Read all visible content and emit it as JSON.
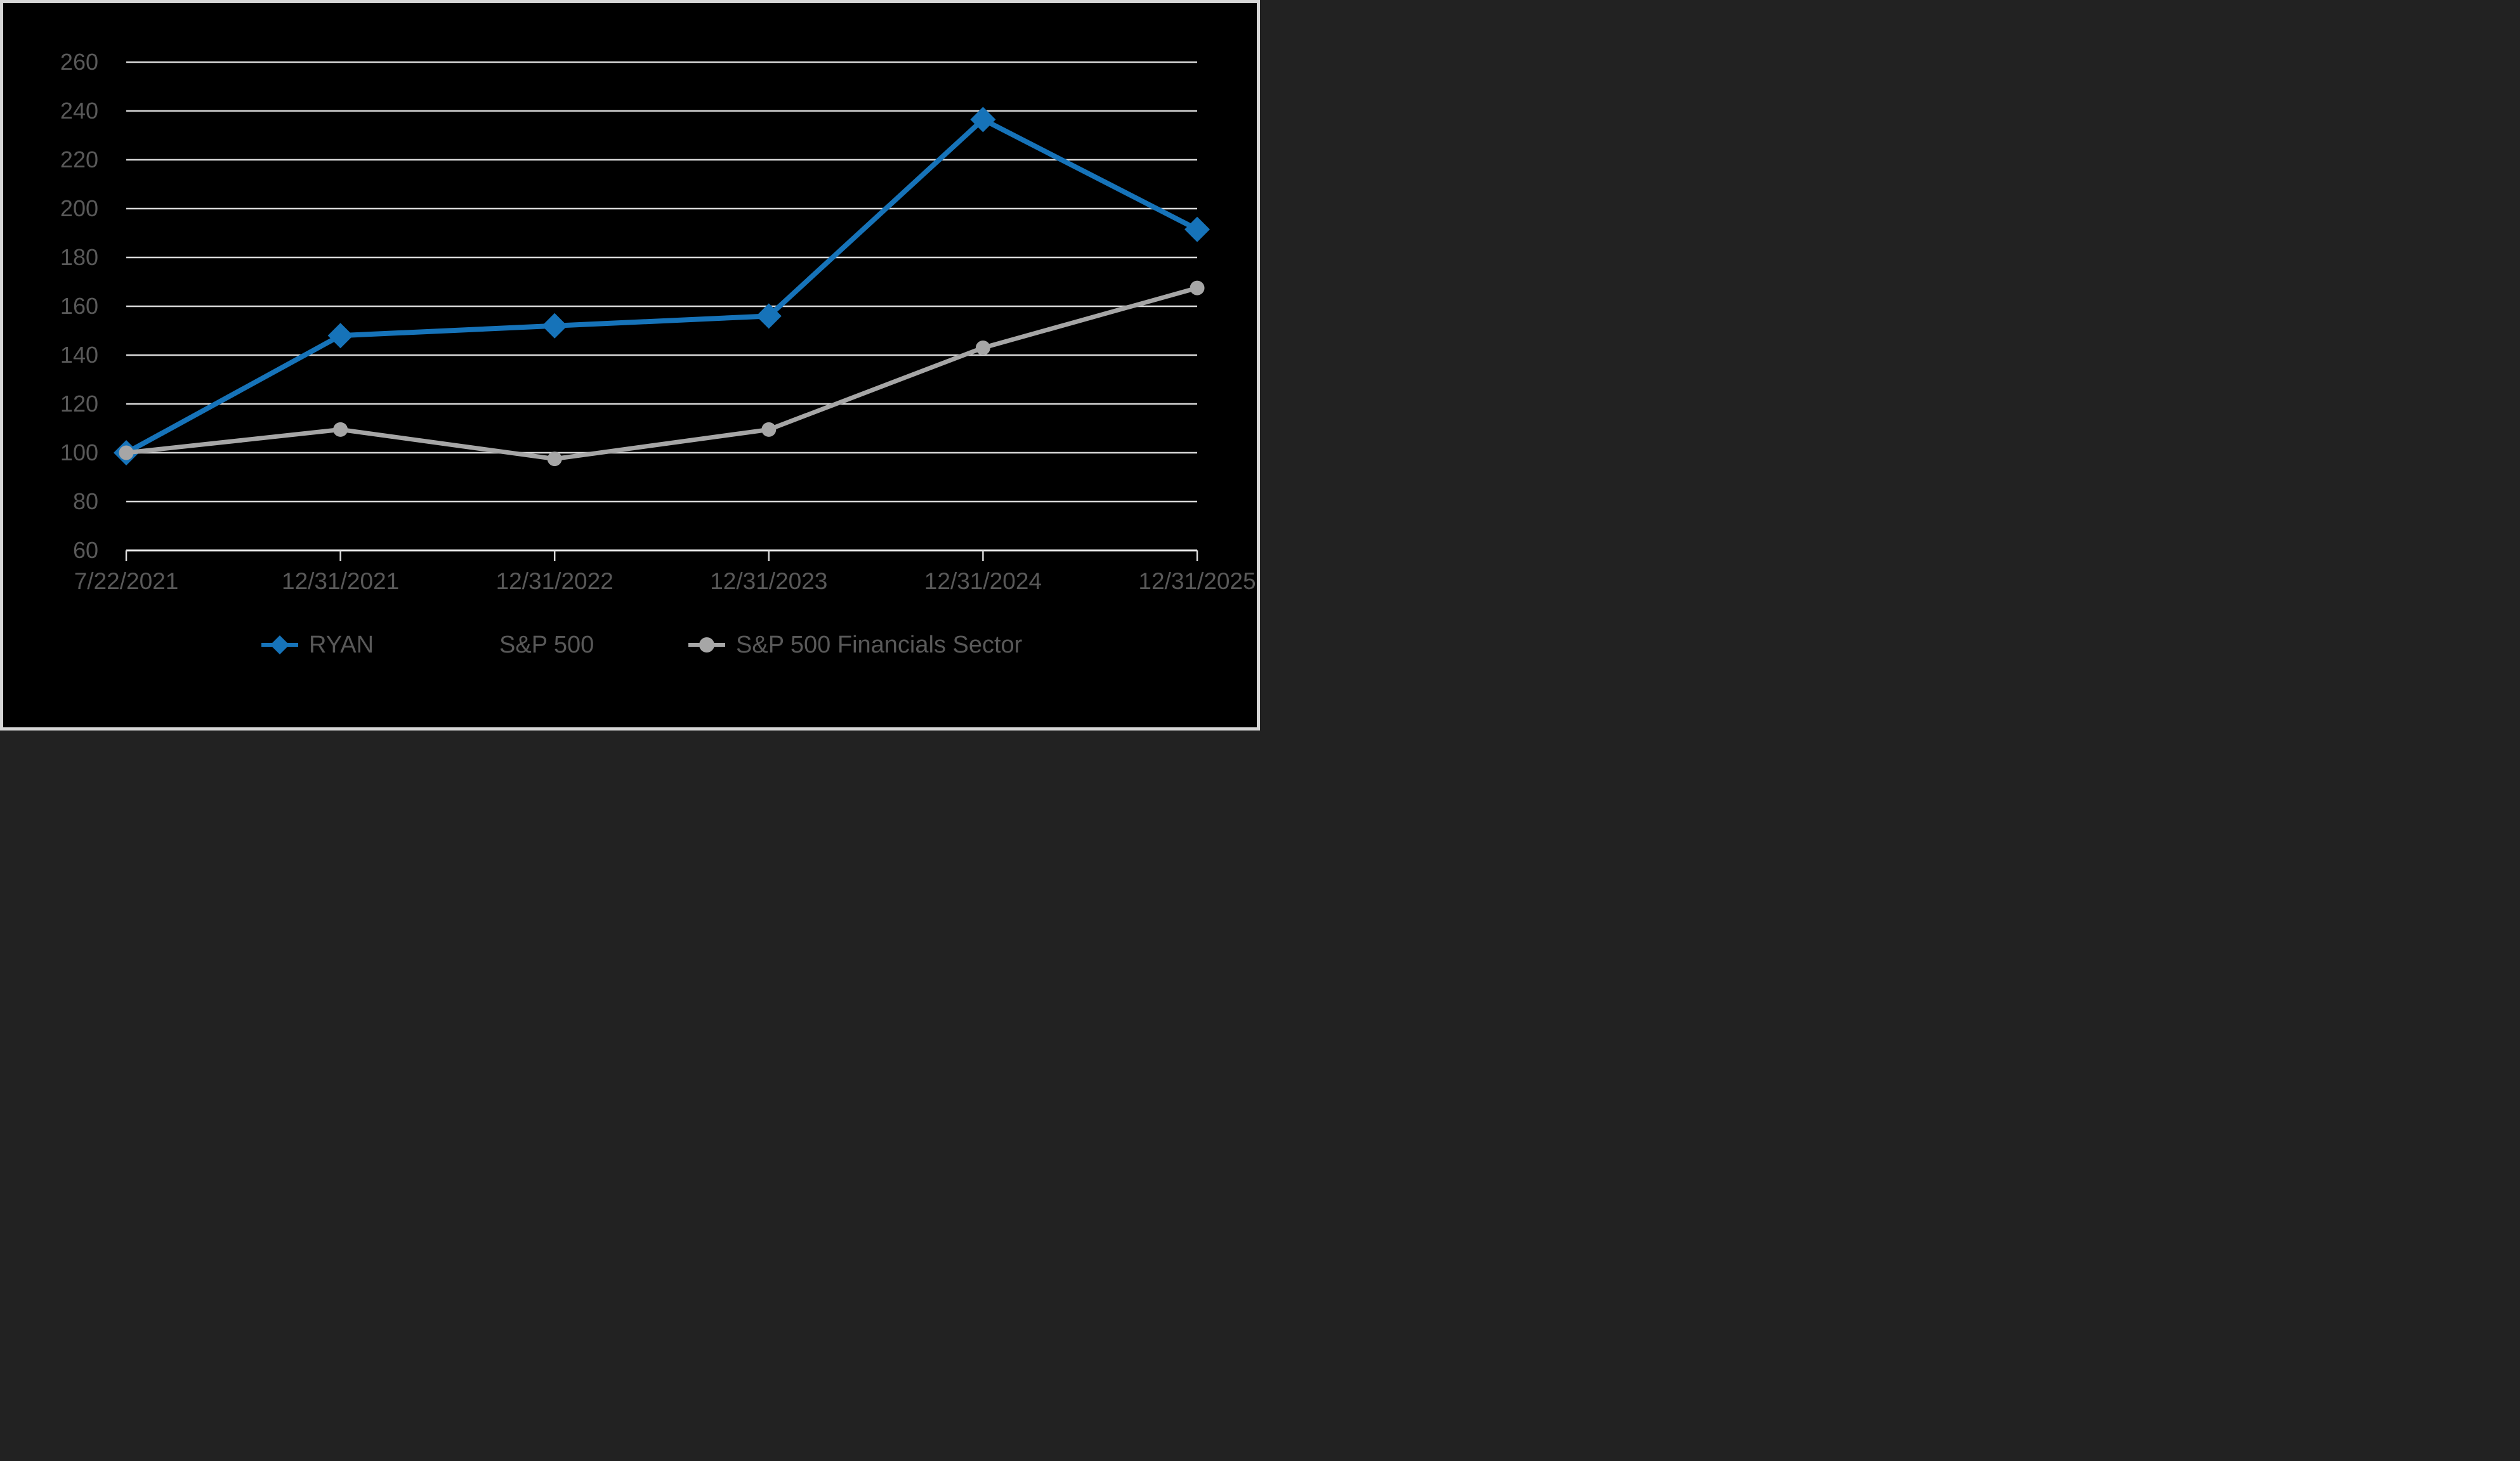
{
  "chart_data": {
    "type": "line",
    "title": "",
    "xlabel": "",
    "ylabel": "",
    "categories": [
      "7/22/2021",
      "12/31/2021",
      "12/31/2022",
      "12/31/2023",
      "12/31/2024",
      "12/31/2025"
    ],
    "series": [
      {
        "name": "RYAN",
        "color": "#1673B9",
        "marker": "diamond",
        "values": [
          100,
          148,
          152,
          156,
          236.5,
          191.5
        ]
      },
      {
        "name": "S&P 500",
        "color": "#000000",
        "marker": "none",
        "values": null,
        "note": "legend entry visible but line/marker invisible (black on black background)"
      },
      {
        "name": "S&P 500 Financials Sector",
        "color": "#A6A6A6",
        "marker": "circle",
        "values": [
          100,
          109.5,
          97.5,
          109.5,
          143,
          167.5
        ]
      }
    ],
    "ylim": [
      60,
      260
    ],
    "y_ticks": [
      60,
      80,
      100,
      120,
      140,
      160,
      180,
      200,
      220,
      240,
      260
    ],
    "grid": "horizontal",
    "legend_position": "bottom"
  },
  "colors": {
    "background": "#000000",
    "frame_border": "#D6D6D6",
    "gridline": "#D9D9D9",
    "axis_line": "#E9E9E9",
    "tick": "#D9D9D9",
    "axis_text": "#595959",
    "legend_text": "#595959",
    "series_ryan": "#1673B9",
    "series_financials": "#A6A6A6"
  }
}
